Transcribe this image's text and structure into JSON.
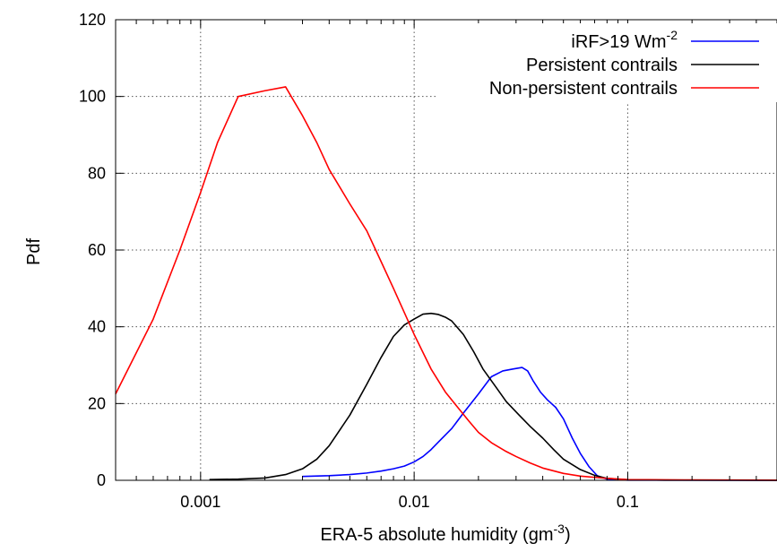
{
  "chart_data": {
    "type": "line",
    "title": "",
    "xlabel": "ERA-5 absolute humidity (gm",
    "xlabel_sup": "-3",
    "xlabel_end": ")",
    "ylabel": "Pdf",
    "xscale": "log",
    "xlim": [
      0.0004,
      0.5
    ],
    "ylim": [
      0,
      120
    ],
    "grid": true,
    "legend_position": "top-right",
    "x_ticks": [
      {
        "value": 0.001,
        "label": "0.001"
      },
      {
        "value": 0.01,
        "label": "0.01"
      },
      {
        "value": 0.1,
        "label": "0.1"
      }
    ],
    "y_ticks": [
      {
        "value": 0,
        "label": "0"
      },
      {
        "value": 20,
        "label": "20"
      },
      {
        "value": 40,
        "label": "40"
      },
      {
        "value": 60,
        "label": "60"
      },
      {
        "value": 80,
        "label": "80"
      },
      {
        "value": 100,
        "label": "100"
      },
      {
        "value": 120,
        "label": "120"
      }
    ],
    "series": [
      {
        "name": "iRF>19 Wm",
        "name_sup": "-2",
        "color": "#0000ff",
        "points": [
          [
            0.003,
            1.0
          ],
          [
            0.004,
            1.2
          ],
          [
            0.005,
            1.5
          ],
          [
            0.006,
            1.9
          ],
          [
            0.007,
            2.4
          ],
          [
            0.008,
            3.0
          ],
          [
            0.009,
            3.7
          ],
          [
            0.01,
            4.8
          ],
          [
            0.011,
            6.2
          ],
          [
            0.012,
            8.0
          ],
          [
            0.013,
            10.0
          ],
          [
            0.015,
            13.5
          ],
          [
            0.017,
            17.5
          ],
          [
            0.02,
            22.5
          ],
          [
            0.023,
            27.0
          ],
          [
            0.026,
            28.5
          ],
          [
            0.029,
            29.0
          ],
          [
            0.032,
            29.4
          ],
          [
            0.034,
            28.5
          ],
          [
            0.036,
            26.0
          ],
          [
            0.039,
            23.0
          ],
          [
            0.042,
            21.0
          ],
          [
            0.046,
            19.0
          ],
          [
            0.05,
            16.0
          ],
          [
            0.055,
            11.0
          ],
          [
            0.06,
            7.0
          ],
          [
            0.066,
            3.5
          ],
          [
            0.072,
            1.2
          ],
          [
            0.08,
            0.3
          ],
          [
            0.1,
            0.05
          ],
          [
            0.5,
            0.0
          ]
        ]
      },
      {
        "name": "Persistent contrails",
        "color": "#000000",
        "points": [
          [
            0.0011,
            0.2
          ],
          [
            0.0015,
            0.3
          ],
          [
            0.002,
            0.6
          ],
          [
            0.0025,
            1.5
          ],
          [
            0.003,
            3.0
          ],
          [
            0.0035,
            5.5
          ],
          [
            0.004,
            9.0
          ],
          [
            0.005,
            17.0
          ],
          [
            0.006,
            25.0
          ],
          [
            0.007,
            32.0
          ],
          [
            0.008,
            37.5
          ],
          [
            0.009,
            40.5
          ],
          [
            0.01,
            42.0
          ],
          [
            0.011,
            43.3
          ],
          [
            0.012,
            43.5
          ],
          [
            0.013,
            43.2
          ],
          [
            0.014,
            42.5
          ],
          [
            0.015,
            41.5
          ],
          [
            0.017,
            38.0
          ],
          [
            0.019,
            33.5
          ],
          [
            0.021,
            29.0
          ],
          [
            0.024,
            24.5
          ],
          [
            0.027,
            20.5
          ],
          [
            0.031,
            17.0
          ],
          [
            0.035,
            14.0
          ],
          [
            0.04,
            11.0
          ],
          [
            0.045,
            8.0
          ],
          [
            0.05,
            5.5
          ],
          [
            0.06,
            2.8
          ],
          [
            0.07,
            1.3
          ],
          [
            0.08,
            0.5
          ],
          [
            0.1,
            0.15
          ],
          [
            0.15,
            0.05
          ],
          [
            0.5,
            0.0
          ]
        ]
      },
      {
        "name": "Non-persistent contrails",
        "color": "#ff0000",
        "points": [
          [
            0.0004,
            22.5
          ],
          [
            0.0006,
            42.0
          ],
          [
            0.0008,
            60.0
          ],
          [
            0.001,
            75.0
          ],
          [
            0.0012,
            88.0
          ],
          [
            0.0015,
            100.0
          ],
          [
            0.002,
            101.5
          ],
          [
            0.0025,
            102.5
          ],
          [
            0.003,
            95.0
          ],
          [
            0.0035,
            88.0
          ],
          [
            0.004,
            81.0
          ],
          [
            0.005,
            72.0
          ],
          [
            0.006,
            65.0
          ],
          [
            0.007,
            57.0
          ],
          [
            0.008,
            50.0
          ],
          [
            0.01,
            38.0
          ],
          [
            0.012,
            29.0
          ],
          [
            0.014,
            23.0
          ],
          [
            0.016,
            19.0
          ],
          [
            0.018,
            15.5
          ],
          [
            0.02,
            12.5
          ],
          [
            0.023,
            9.8
          ],
          [
            0.027,
            7.5
          ],
          [
            0.03,
            6.2
          ],
          [
            0.035,
            4.5
          ],
          [
            0.04,
            3.2
          ],
          [
            0.05,
            1.8
          ],
          [
            0.06,
            1.1
          ],
          [
            0.08,
            0.5
          ],
          [
            0.1,
            0.2
          ],
          [
            0.2,
            0.1
          ],
          [
            0.5,
            0.05
          ]
        ]
      }
    ]
  }
}
